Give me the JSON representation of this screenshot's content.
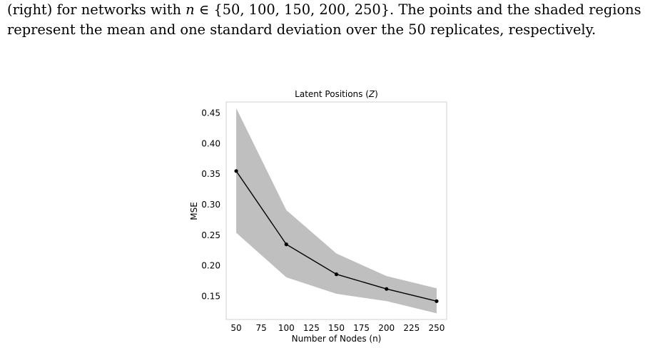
{
  "caption": {
    "line1": "(right) for networks with n ∈ {50, 100, 150, 200, 250}. The points and the shaded regions",
    "line2": "represent the mean and one standard deviation over the 50 replicates, respectively."
  },
  "chart_data": {
    "type": "line",
    "title": "Latent Positions (Z)",
    "xlabel": "Number of Nodes (n)",
    "ylabel": "MSE",
    "x": [
      50,
      100,
      150,
      200,
      250
    ],
    "series": [
      {
        "values": [
          0.355,
          0.235,
          0.186,
          0.162,
          0.142
        ],
        "lower": [
          0.254,
          0.181,
          0.154,
          0.142,
          0.122
        ],
        "upper": [
          0.458,
          0.291,
          0.22,
          0.183,
          0.163
        ]
      }
    ],
    "xticks": [
      50,
      75,
      100,
      125,
      150,
      175,
      200,
      225,
      250
    ],
    "xtick_labels": [
      "50",
      "75",
      "100",
      "125",
      "150",
      "175",
      "200",
      "225",
      "250"
    ],
    "yticks": [
      0.15,
      0.2,
      0.25,
      0.3,
      0.35,
      0.4,
      0.45
    ],
    "ytick_labels": [
      "0.15",
      "0.20",
      "0.25",
      "0.30",
      "0.35",
      "0.40",
      "0.45"
    ],
    "xlim": [
      40,
      260
    ],
    "ylim": [
      0.112,
      0.468
    ],
    "grid": false,
    "colors": {
      "line": "#000000",
      "band": "#bfbfbf",
      "frame": "#d0d0d0"
    }
  }
}
